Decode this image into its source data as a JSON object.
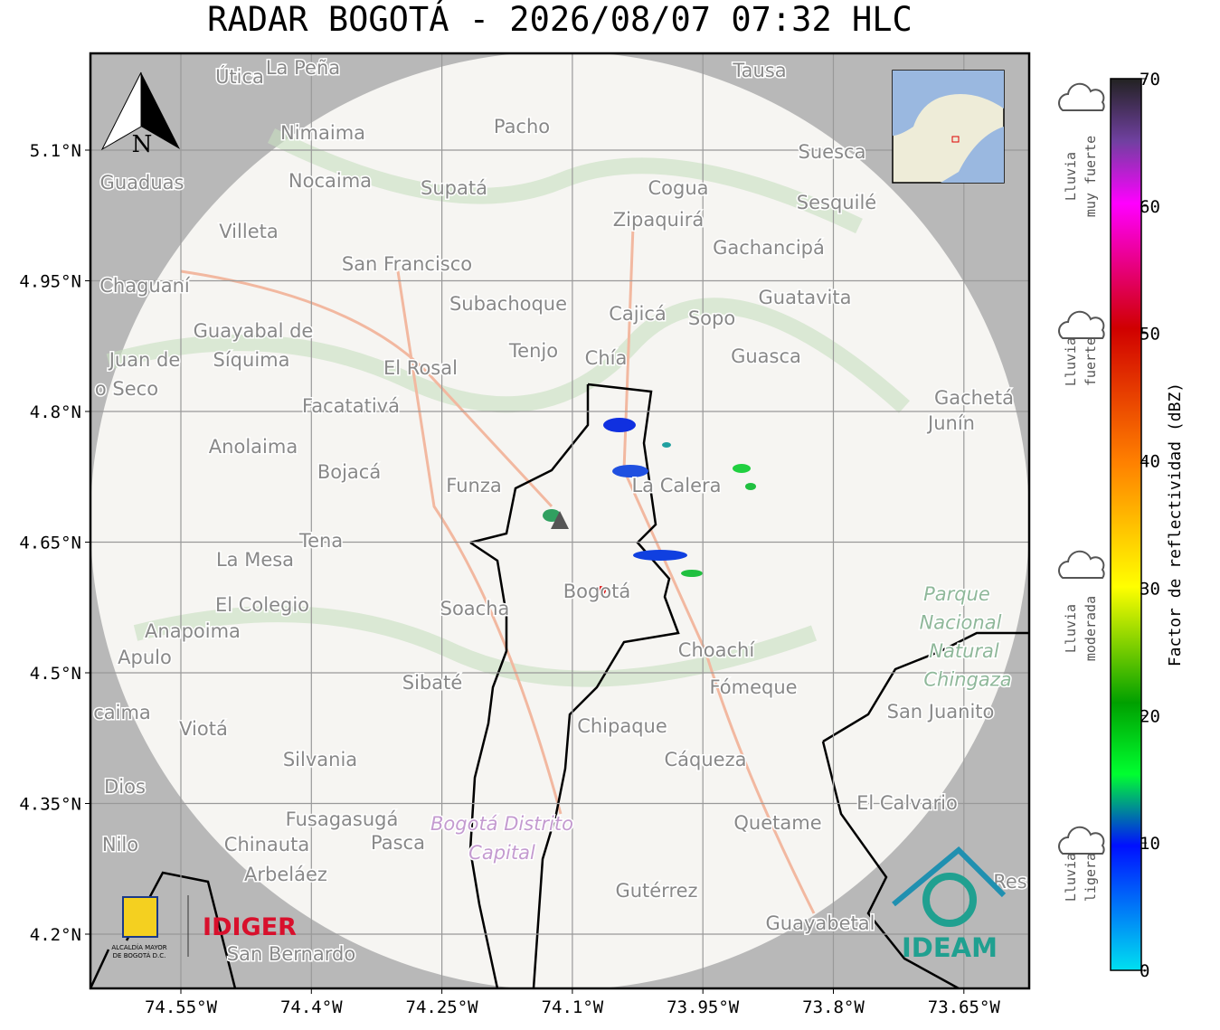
{
  "title": "RADAR BOGOTÁ - 2026/08/07 07:32 HLC",
  "map": {
    "lat_ticks": [
      "5.1°N",
      "4.95°N",
      "4.8°N",
      "4.65°N",
      "4.5°N",
      "4.35°N",
      "4.2°N"
    ],
    "lon_ticks": [
      "74.55°W",
      "74.4°W",
      "74.25°W",
      "74.1°W",
      "73.95°W",
      "73.8°W",
      "73.65°W"
    ],
    "north": "N",
    "places": [
      "Útica",
      "La Peña",
      "Tausa",
      "Pacho",
      "Nimaima",
      "Guaduas",
      "Nocaima",
      "Supatá",
      "Cogua",
      "Suesca",
      "Sesquilé",
      "Zipaquirá",
      "Villeta",
      "Gachancipá",
      "San Francisco",
      "Chaguaní",
      "Guatavita",
      "Subachoque",
      "Cajicá",
      "Sopo",
      "Guayabal de",
      "Síquima",
      "Juan de",
      "Tenjo",
      "Chía",
      "Guasca",
      "El Rosal",
      "o Seco",
      "Facatativá",
      "Gachetá",
      "Junín",
      "Anolaima",
      "Bojacá",
      "Funza",
      "La Calera",
      "Tena",
      "La Mesa",
      "El Colegio",
      "Soacha",
      "Bogotá",
      "Anapoima",
      "Apulo",
      "Choachí",
      "Sibaté",
      "Fómeque",
      "San Juanito",
      "caima",
      "Viotá",
      "Chipaque",
      "Silvania",
      "Cáqueza",
      "Dios",
      "El Calvario",
      "Fusagasugá",
      "Quetame",
      "Nilo",
      "Chinauta",
      "Pasca",
      "Arbeláez",
      "Gutérrez",
      "Guayabetal",
      "San Bernardo",
      "Res"
    ],
    "park": [
      "Parque",
      "Nacional",
      "Natural",
      "Chingaza"
    ],
    "district": [
      "Bogotá Distrito",
      "Capital"
    ]
  },
  "logos": {
    "alcaldia": [
      "ALCALDÍA MAYOR",
      "DE BOGOTÁ D.C."
    ],
    "idiger": "IDIGER",
    "ideam": "IDEAM"
  },
  "colorbar": {
    "label": "Factor de reflectividad (dBZ)",
    "range": [
      0,
      70
    ],
    "ticks": [
      0,
      10,
      20,
      30,
      40,
      50,
      60,
      70
    ]
  },
  "rain_levels": [
    [
      "Lluvia",
      "ligera"
    ],
    [
      "Lluvia",
      "moderada"
    ],
    [
      "Lluvia",
      "fuerte"
    ],
    [
      "Lluvia",
      "muy fuerte"
    ]
  ]
}
